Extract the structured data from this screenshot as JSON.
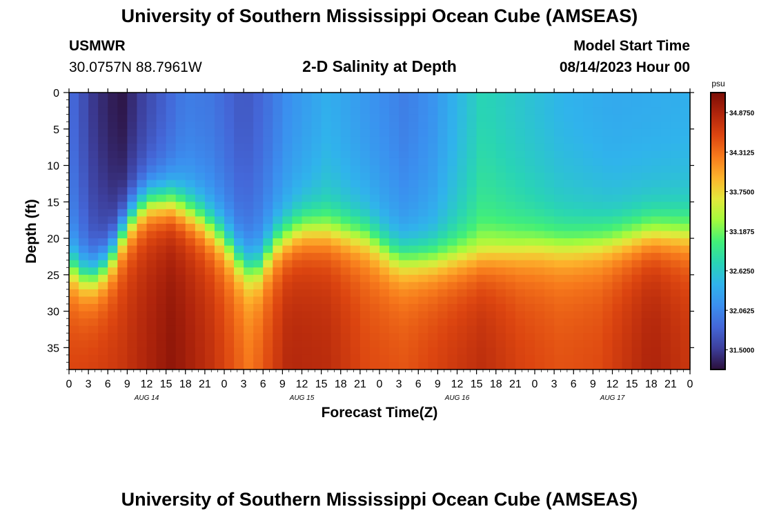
{
  "header": {
    "title": "University of Southern Mississippi Ocean Cube (AMSEAS)",
    "station": "USMWR",
    "coords": "30.0757N  88.7961W",
    "subtitle": "2-D Salinity at Depth",
    "model_start_label": "Model Start Time",
    "model_start_value": "08/14/2023 Hour 00"
  },
  "footer": {
    "title": "University of Southern Mississippi Ocean Cube (AMSEAS)"
  },
  "chart_data": {
    "type": "heatmap",
    "title": "2-D Salinity at Depth",
    "xlabel": "Forecast Time(Z)",
    "ylabel": "Depth (ft)",
    "x_range_hours": [
      0,
      96
    ],
    "y_range_ft": [
      0,
      38
    ],
    "x_ticks": [
      "0",
      "3",
      "6",
      "9",
      "12",
      "15",
      "18",
      "21",
      "0",
      "3",
      "6",
      "9",
      "12",
      "15",
      "18",
      "21",
      "0",
      "3",
      "6",
      "9",
      "12",
      "15",
      "18",
      "21",
      "0",
      "3",
      "6",
      "9",
      "12",
      "15",
      "18",
      "21",
      "0"
    ],
    "y_ticks": [
      0,
      5,
      10,
      15,
      20,
      25,
      30,
      35
    ],
    "day_labels": [
      {
        "text": "AUG 14",
        "hour": 12
      },
      {
        "text": "AUG 15",
        "hour": 36
      },
      {
        "text": "AUG 16",
        "hour": 60
      },
      {
        "text": "AUG 17",
        "hour": 84
      }
    ],
    "colorbar": {
      "unit": "psu",
      "min": 31.22,
      "max": 35.16,
      "labels": [
        "34.8750",
        "34.3125",
        "33.7500",
        "33.1875",
        "32.6250",
        "32.0625",
        "31.5000"
      ],
      "colors": [
        "#2b0f3a",
        "#3d3f9c",
        "#4467d8",
        "#3b8fef",
        "#30b3ec",
        "#29d4b5",
        "#42ef78",
        "#a2fb3d",
        "#e3e83c",
        "#fdb32c",
        "#f77a1c",
        "#dc4510",
        "#b0250c",
        "#7a0d06"
      ]
    },
    "surface_salinity_psu": [
      {
        "hour": 0,
        "value": 31.9
      },
      {
        "hour": 4,
        "value": 31.45
      },
      {
        "hour": 8,
        "value": 31.25
      },
      {
        "hour": 12,
        "value": 31.6
      },
      {
        "hour": 18,
        "value": 32.0
      },
      {
        "hour": 22,
        "value": 31.95
      },
      {
        "hour": 27,
        "value": 31.7
      },
      {
        "hour": 30,
        "value": 31.85
      },
      {
        "hour": 34,
        "value": 32.15
      },
      {
        "hour": 40,
        "value": 32.4
      },
      {
        "hour": 46,
        "value": 32.2
      },
      {
        "hour": 52,
        "value": 32.0
      },
      {
        "hour": 56,
        "value": 32.15
      },
      {
        "hour": 60,
        "value": 32.45
      },
      {
        "hour": 64,
        "value": 32.75
      },
      {
        "hour": 70,
        "value": 32.6
      },
      {
        "hour": 76,
        "value": 32.45
      },
      {
        "hour": 84,
        "value": 32.35
      },
      {
        "hour": 96,
        "value": 32.4
      }
    ],
    "halocline_depth_ft": [
      {
        "hour": 0,
        "value": 23.0
      },
      {
        "hour": 3,
        "value": 25.0
      },
      {
        "hour": 6,
        "value": 23.0
      },
      {
        "hour": 9,
        "value": 17.5
      },
      {
        "hour": 12,
        "value": 14.5
      },
      {
        "hour": 16,
        "value": 14.5
      },
      {
        "hour": 20,
        "value": 16.5
      },
      {
        "hour": 24,
        "value": 19.5
      },
      {
        "hour": 27,
        "value": 23.0
      },
      {
        "hour": 29,
        "value": 23.5
      },
      {
        "hour": 32,
        "value": 20.0
      },
      {
        "hour": 36,
        "value": 18.0
      },
      {
        "hour": 40,
        "value": 18.0
      },
      {
        "hour": 46,
        "value": 19.0
      },
      {
        "hour": 50,
        "value": 21.5
      },
      {
        "hour": 52,
        "value": 22.0
      },
      {
        "hour": 56,
        "value": 22.0
      },
      {
        "hour": 60,
        "value": 21.5
      },
      {
        "hour": 64,
        "value": 21.0
      },
      {
        "hour": 68,
        "value": 20.5
      },
      {
        "hour": 72,
        "value": 20.0
      },
      {
        "hour": 78,
        "value": 20.0
      },
      {
        "hour": 84,
        "value": 19.5
      },
      {
        "hour": 90,
        "value": 18.5
      },
      {
        "hour": 96,
        "value": 18.5
      }
    ],
    "bottom_salinity_psu": [
      {
        "hour": 0,
        "value": 34.6
      },
      {
        "hour": 8,
        "value": 34.7
      },
      {
        "hour": 16,
        "value": 35.05
      },
      {
        "hour": 22,
        "value": 34.75
      },
      {
        "hour": 28,
        "value": 34.3
      },
      {
        "hour": 34,
        "value": 34.85
      },
      {
        "hour": 40,
        "value": 34.8
      },
      {
        "hour": 46,
        "value": 34.55
      },
      {
        "hour": 52,
        "value": 34.5
      },
      {
        "hour": 58,
        "value": 34.65
      },
      {
        "hour": 64,
        "value": 34.8
      },
      {
        "hour": 70,
        "value": 34.6
      },
      {
        "hour": 76,
        "value": 34.5
      },
      {
        "hour": 82,
        "value": 34.55
      },
      {
        "hour": 90,
        "value": 34.9
      },
      {
        "hour": 96,
        "value": 34.7
      }
    ]
  }
}
